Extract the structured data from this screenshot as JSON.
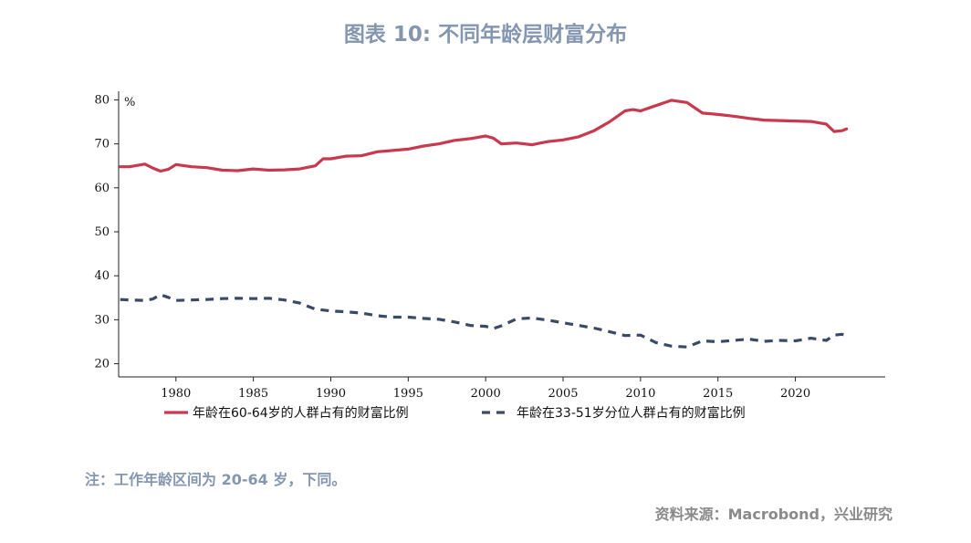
{
  "title": "图表 10: 不同年龄层财富分布",
  "note": "注：工作年龄区间为 20-64 岁，下同。",
  "source": "资料来源：Macrobond，兴业研究",
  "chart_data": {
    "type": "line",
    "ylabel": "%",
    "xlim": [
      1976.3,
      2025.8
    ],
    "ylim": [
      17,
      83
    ],
    "yticks": [
      20,
      30,
      40,
      50,
      60,
      70,
      80
    ],
    "xticks": [
      1980,
      1985,
      1990,
      1995,
      2000,
      2005,
      2010,
      2015,
      2020
    ],
    "legend_position": "bottom",
    "series": [
      {
        "name": "年龄在60-64岁的人群占有的财富比例",
        "color": "#c8384e",
        "style": "solid",
        "x": [
          1976.4,
          1977,
          1978,
          1978.5,
          1979,
          1979.5,
          1980,
          1981,
          1982,
          1983,
          1984,
          1985,
          1986,
          1987,
          1988,
          1989,
          1989.5,
          1990,
          1991,
          1992,
          1993,
          1994,
          1995,
          1996,
          1997,
          1998,
          1999,
          2000,
          2000.5,
          2001,
          2002,
          2003,
          2004,
          2005,
          2006,
          2007,
          2008,
          2009,
          2009.5,
          2010,
          2011,
          2012,
          2013,
          2014,
          2015,
          2016,
          2017,
          2018,
          2019,
          2020,
          2021,
          2022,
          2022.5,
          2023,
          2023.3
        ],
        "values": [
          64.8,
          64.8,
          65.4,
          64.5,
          63.8,
          64.2,
          65.3,
          64.8,
          64.6,
          64.0,
          63.9,
          64.3,
          64.0,
          64.1,
          64.3,
          65.0,
          66.6,
          66.6,
          67.2,
          67.3,
          68.2,
          68.5,
          68.8,
          69.5,
          70.0,
          70.8,
          71.2,
          71.8,
          71.3,
          70.0,
          70.2,
          69.8,
          70.5,
          70.9,
          71.6,
          73.0,
          75.0,
          77.5,
          77.8,
          77.5,
          78.7,
          79.9,
          79.4,
          77.0,
          76.7,
          76.3,
          75.8,
          75.4,
          75.3,
          75.2,
          75.1,
          74.5,
          72.8,
          73.0,
          73.4
        ]
      },
      {
        "name": "年龄在33-51岁分位人群占有的财富比例",
        "color": "#3a4a66",
        "style": "dashed",
        "x": [
          1976.4,
          1977,
          1978,
          1978.5,
          1979,
          1979.5,
          1980,
          1981,
          1982,
          1983,
          1984,
          1985,
          1986,
          1987,
          1988,
          1989,
          1990,
          1991,
          1992,
          1993,
          1994,
          1995,
          1996,
          1997,
          1998,
          1999,
          2000,
          2000.5,
          2001,
          2002,
          2003,
          2004,
          2005,
          2006,
          2007,
          2008,
          2009,
          2010,
          2011,
          2012,
          2013,
          2014,
          2015,
          2016,
          2017,
          2018,
          2019,
          2020,
          2021,
          2022,
          2022.5,
          2023,
          2023.3
        ],
        "values": [
          34.6,
          34.5,
          34.4,
          34.7,
          35.7,
          35.1,
          34.4,
          34.5,
          34.6,
          34.8,
          34.9,
          34.8,
          34.9,
          34.5,
          33.8,
          32.4,
          32.0,
          31.8,
          31.5,
          30.9,
          30.6,
          30.6,
          30.3,
          30.1,
          29.5,
          28.7,
          28.5,
          28.0,
          28.6,
          30.2,
          30.4,
          29.9,
          29.3,
          28.7,
          28.1,
          27.3,
          26.4,
          26.5,
          24.8,
          24.0,
          23.8,
          25.2,
          25.0,
          25.3,
          25.6,
          25.1,
          25.3,
          25.2,
          25.8,
          25.3,
          26.5,
          26.7,
          26.4
        ]
      }
    ]
  }
}
